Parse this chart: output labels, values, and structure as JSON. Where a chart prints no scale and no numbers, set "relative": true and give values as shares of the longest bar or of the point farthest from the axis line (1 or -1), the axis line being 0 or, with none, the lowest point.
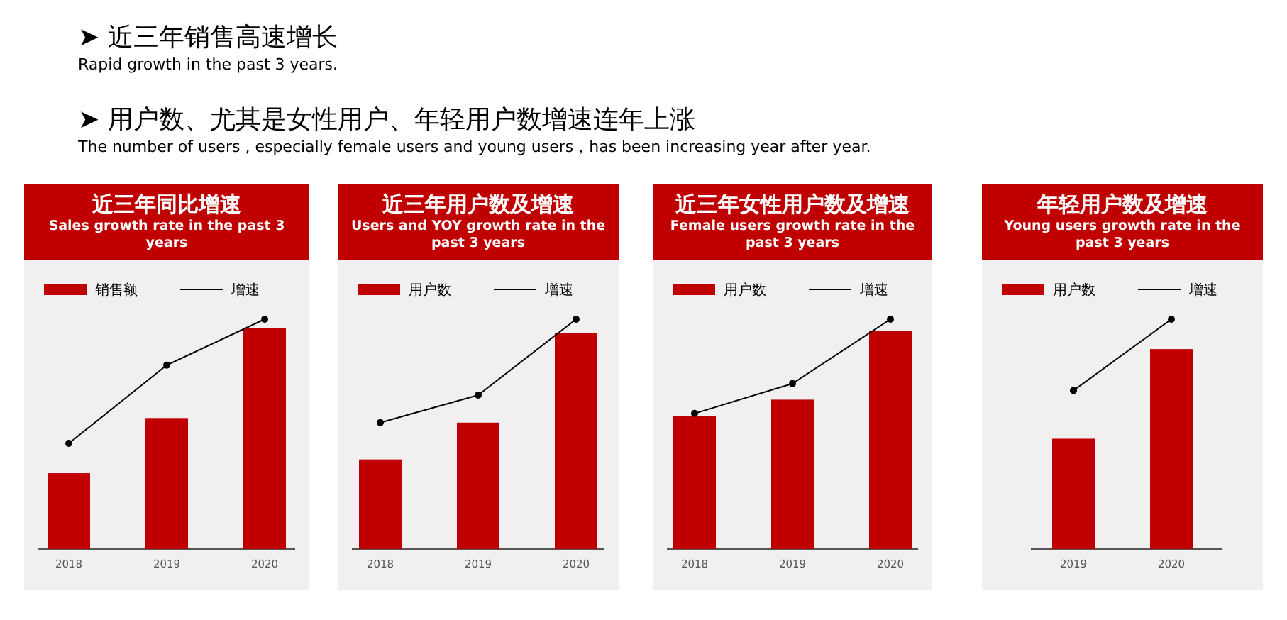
{
  "chart_data": [
    {
      "type": "other",
      "annotations": [
        "➤ 近三年销售高速增长",
        "Rapid growth in the past 3 years.",
        "➤ 用户数、尤其是女性用户、年轻用户数增速连年上涨",
        "The number of users , especially female users and young users，has been increasing year after year."
      ]
    },
    {
      "type": "bar",
      "title": "近三年同比增速",
      "subtitle": "Sales growth rate in the past 3 years",
      "categories": [
        "2018",
        "2019",
        "2020"
      ],
      "relative": true,
      "legend": "top",
      "series": [
        {
          "name": "销售额",
          "type": "bar",
          "color": "#c00000",
          "values": [
            0.33,
            0.57,
            0.96
          ]
        },
        {
          "name": "增速",
          "type": "line",
          "color": "#000000",
          "marker": "circle",
          "values": [
            0.46,
            0.8,
            1
          ]
        }
      ]
    },
    {
      "type": "bar",
      "title": "近三年用户数及增速",
      "subtitle": "Users and YOY growth rate in the past 3 years",
      "categories": [
        "2018",
        "2019",
        "2020"
      ],
      "relative": true,
      "legend": "top",
      "series": [
        {
          "name": "用户数",
          "type": "bar",
          "color": "#c00000",
          "values": [
            0.39,
            0.55,
            0.94
          ]
        },
        {
          "name": "增速",
          "type": "line",
          "color": "#000000",
          "marker": "circle",
          "values": [
            0.55,
            0.67,
            1
          ]
        }
      ]
    },
    {
      "type": "bar",
      "title": "近三年女性用户数及增速",
      "subtitle": "Female users growth rate in the past 3 years",
      "categories": [
        "2018",
        "2019",
        "2020"
      ],
      "relative": true,
      "legend": "top",
      "series": [
        {
          "name": "用户数",
          "type": "bar",
          "color": "#c00000",
          "values": [
            0.58,
            0.65,
            0.95
          ]
        },
        {
          "name": "增速",
          "type": "line",
          "color": "#000000",
          "marker": "circle",
          "values": [
            0.59,
            0.72,
            1
          ]
        }
      ]
    },
    {
      "type": "bar",
      "title": "年轻用户数及增速",
      "subtitle": "Young users growth rate in the past 3 years",
      "categories": [
        "2019",
        "2020"
      ],
      "relative": true,
      "legend": "top",
      "series": [
        {
          "name": "用户数",
          "type": "bar",
          "color": "#c00000",
          "values": [
            0.48,
            0.87
          ]
        },
        {
          "name": "增速",
          "type": "line",
          "color": "#000000",
          "marker": "circle",
          "values": [
            0.69,
            1
          ]
        }
      ]
    }
  ]
}
